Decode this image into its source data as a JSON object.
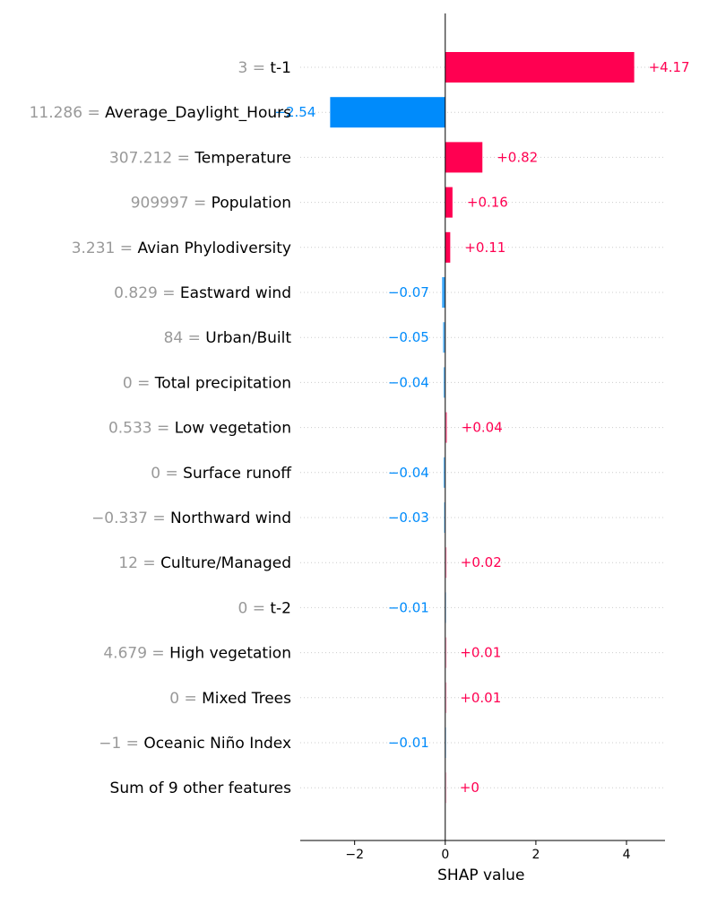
{
  "chart_data": {
    "type": "bar",
    "orientation": "horizontal",
    "xlabel": "SHAP value",
    "xlim": [
      -3.2,
      4.85
    ],
    "xticks": [
      {
        "value": -2,
        "label": "−2"
      },
      {
        "value": 0,
        "label": "0"
      },
      {
        "value": 2,
        "label": "2"
      },
      {
        "value": 4,
        "label": "4"
      }
    ],
    "grid": "dotted horizontal row lines",
    "colors": {
      "positive": "#ff0051",
      "negative": "#008bfb"
    },
    "rows": [
      {
        "feature_value": "3",
        "feature": "t-1",
        "shap": 4.17,
        "label": "+4.17"
      },
      {
        "feature_value": "11.286",
        "feature": "Average_Daylight_Hours",
        "shap": -2.54,
        "label": "−2.54"
      },
      {
        "feature_value": "307.212",
        "feature": "Temperature",
        "shap": 0.82,
        "label": "+0.82"
      },
      {
        "feature_value": "909997",
        "feature": "Population",
        "shap": 0.16,
        "label": "+0.16"
      },
      {
        "feature_value": "3.231",
        "feature": "Avian Phylodiversity",
        "shap": 0.11,
        "label": "+0.11"
      },
      {
        "feature_value": "0.829",
        "feature": "Eastward wind",
        "shap": -0.07,
        "label": "−0.07"
      },
      {
        "feature_value": "84",
        "feature": "Urban/Built",
        "shap": -0.05,
        "label": "−0.05"
      },
      {
        "feature_value": "0",
        "feature": "Total precipitation",
        "shap": -0.04,
        "label": "−0.04"
      },
      {
        "feature_value": "0.533",
        "feature": "Low vegetation",
        "shap": 0.04,
        "label": "+0.04"
      },
      {
        "feature_value": "0",
        "feature": "Surface runoff",
        "shap": -0.04,
        "label": "−0.04"
      },
      {
        "feature_value": "−0.337",
        "feature": "Northward wind",
        "shap": -0.03,
        "label": "−0.03"
      },
      {
        "feature_value": "12",
        "feature": "Culture/Managed",
        "shap": 0.02,
        "label": "+0.02"
      },
      {
        "feature_value": "0",
        "feature": "t-2",
        "shap": -0.01,
        "label": "−0.01"
      },
      {
        "feature_value": "4.679",
        "feature": "High vegetation",
        "shap": 0.01,
        "label": "+0.01"
      },
      {
        "feature_value": "0",
        "feature": "Mixed Trees",
        "shap": 0.01,
        "label": "+0.01"
      },
      {
        "feature_value": "−1",
        "feature": "Oceanic Niño Index",
        "shap": -0.01,
        "label": "−0.01"
      },
      {
        "feature_value": "",
        "feature": "Sum of 9 other features",
        "shap": 0.0,
        "label": "+0"
      }
    ]
  }
}
